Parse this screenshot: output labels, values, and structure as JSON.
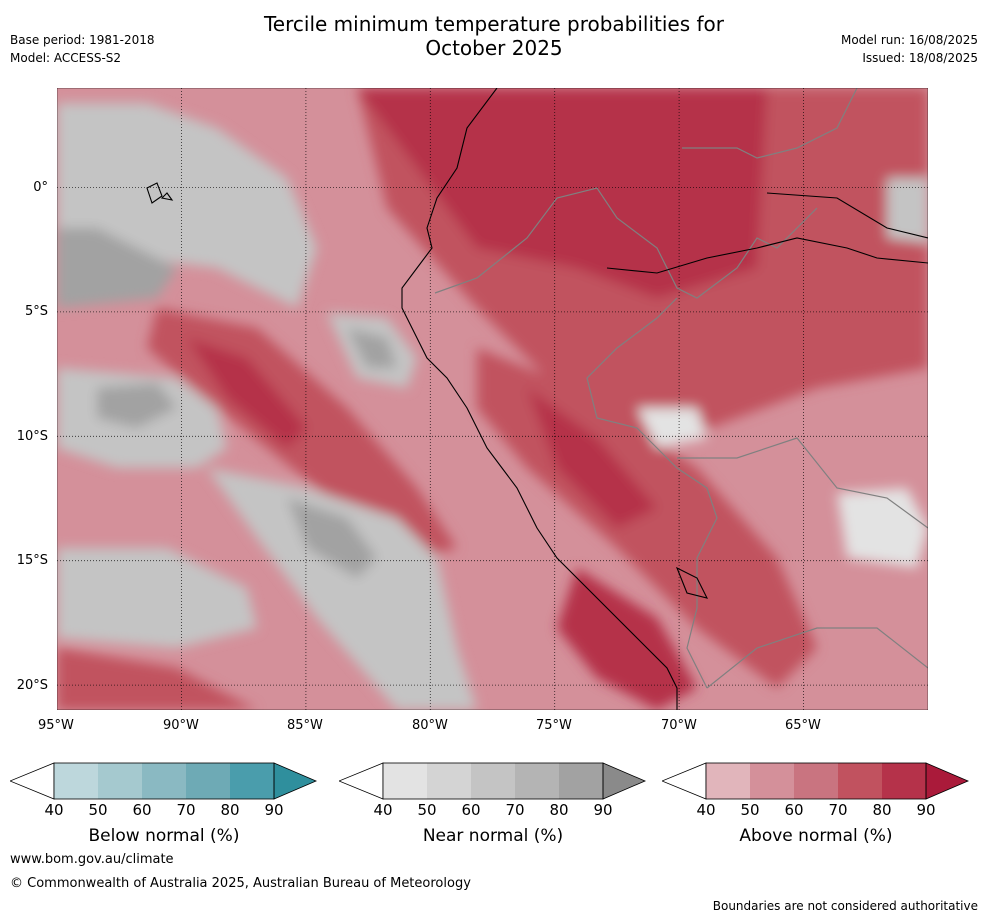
{
  "header": {
    "title_line1": "Tercile minimum temperature probabilities for",
    "title_line2": "October 2025",
    "base_period": "Base period: 1981-2018",
    "model": "Model: ACCESS-S2",
    "model_run": "Model run: 16/08/2025",
    "issued": "Issued: 18/08/2025"
  },
  "map": {
    "lat_labels": [
      "0°",
      "5°S",
      "10°S",
      "15°S",
      "20°S"
    ],
    "lat_values": [
      0,
      -5,
      -10,
      -15,
      -20
    ],
    "lon_labels": [
      "95°W",
      "90°W",
      "85°W",
      "80°W",
      "75°W",
      "70°W",
      "65°W"
    ],
    "lon_values": [
      -95,
      -90,
      -85,
      -80,
      -75,
      -70,
      -65
    ],
    "lat_range": [
      -21,
      4
    ],
    "lon_range": [
      -95,
      -60
    ],
    "grid": true
  },
  "legends": [
    {
      "title": "Below normal (%)",
      "ticks": [
        "40",
        "50",
        "60",
        "70",
        "80",
        "90"
      ],
      "colors": [
        "#bdd7dc",
        "#a5c9cf",
        "#8ab9c2",
        "#6eaab5",
        "#4a9dac",
        "#2f8f9d"
      ]
    },
    {
      "title": "Near normal (%)",
      "ticks": [
        "40",
        "50",
        "60",
        "70",
        "80",
        "90"
      ],
      "colors": [
        "#e3e3e3",
        "#d4d4d4",
        "#c4c4c4",
        "#b4b4b4",
        "#a2a2a2",
        "#8a8a8a"
      ]
    },
    {
      "title": "Above normal (%)",
      "ticks": [
        "40",
        "50",
        "60",
        "70",
        "80",
        "90"
      ],
      "colors": [
        "#e1b5bb",
        "#d4909a",
        "#c97480",
        "#c1525f",
        "#b5324a",
        "#aa1a3a"
      ]
    }
  ],
  "footer": {
    "website": "www.bom.gov.au/climate",
    "copyright": "© Commonwealth of Australia 2025, Australian Bureau of Meteorology",
    "disclaimer": "Boundaries are not considered authoritative"
  }
}
